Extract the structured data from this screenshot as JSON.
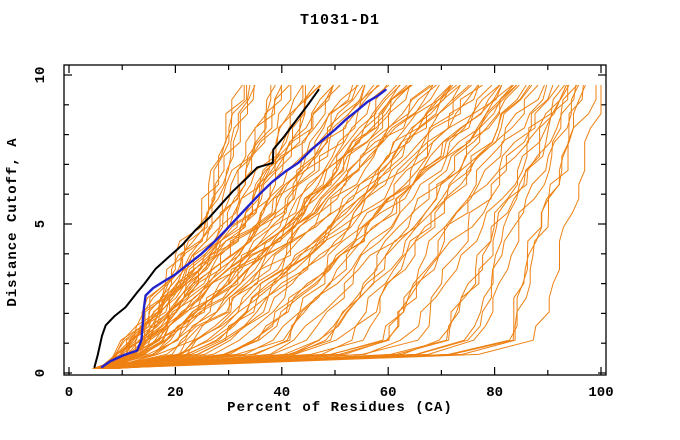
{
  "chart_data": {
    "type": "line",
    "title": "T1031-D1",
    "xlabel": "Percent of Residues (CA)",
    "ylabel": "Distance Cutoff, A",
    "xlim": [
      0,
      100
    ],
    "ylim": [
      0,
      10
    ],
    "x_major_ticks": [
      0,
      20,
      40,
      60,
      80,
      100
    ],
    "x_minor_ticks": [
      10,
      30,
      50,
      70,
      90
    ],
    "y_major_ticks": [
      0,
      5,
      10
    ],
    "y_minor_ticks": [
      1,
      2,
      3,
      4,
      6,
      7,
      8,
      9
    ],
    "grid": false,
    "legend": "none",
    "plot_bg": "#ffffff",
    "frame_color": "#000000",
    "series": [
      {
        "name": "highlighted-model-black",
        "color": "#000000",
        "width": 2,
        "points": [
          [
            4.8,
            0.2
          ],
          [
            5.4,
            0.6
          ],
          [
            6.2,
            1.25
          ],
          [
            6.9,
            1.6
          ],
          [
            8.5,
            1.9
          ],
          [
            10.6,
            2.2
          ],
          [
            12.8,
            2.7
          ],
          [
            14.2,
            3.0
          ],
          [
            16.3,
            3.5
          ],
          [
            18.8,
            3.9
          ],
          [
            21.3,
            4.3
          ],
          [
            23.8,
            4.8
          ],
          [
            26.3,
            5.2
          ],
          [
            28.8,
            5.7
          ],
          [
            30.8,
            6.1
          ],
          [
            33.2,
            6.5
          ],
          [
            35.4,
            6.9
          ],
          [
            38.3,
            7.05
          ],
          [
            38.4,
            7.5
          ],
          [
            40.5,
            7.95
          ],
          [
            42.8,
            8.5
          ],
          [
            44.9,
            9.0
          ],
          [
            46.9,
            9.5
          ]
        ]
      },
      {
        "name": "highlighted-model-blue",
        "color": "#2323cd",
        "width": 2.4,
        "points": [
          [
            6.2,
            0.2
          ],
          [
            7.8,
            0.4
          ],
          [
            10.3,
            0.6
          ],
          [
            12.8,
            0.75
          ],
          [
            13.6,
            1.1
          ],
          [
            13.9,
            1.7
          ],
          [
            14.1,
            2.2
          ],
          [
            14.4,
            2.6
          ],
          [
            15.8,
            2.85
          ],
          [
            17.6,
            3.05
          ],
          [
            19.9,
            3.3
          ],
          [
            22.4,
            3.65
          ],
          [
            24.9,
            4.0
          ],
          [
            27.3,
            4.4
          ],
          [
            29.5,
            4.8
          ],
          [
            31.6,
            5.2
          ],
          [
            33.7,
            5.6
          ],
          [
            35.8,
            6.0
          ],
          [
            38.1,
            6.4
          ],
          [
            40.6,
            6.75
          ],
          [
            43.1,
            7.05
          ],
          [
            45.6,
            7.5
          ],
          [
            47.9,
            7.85
          ],
          [
            49.9,
            8.15
          ],
          [
            52.0,
            8.5
          ],
          [
            54.1,
            8.8
          ],
          [
            56.1,
            9.1
          ],
          [
            58.0,
            9.3
          ],
          [
            59.5,
            9.5
          ]
        ]
      }
    ],
    "ensemble": {
      "name": "model-ensemble-orange",
      "description": "fan of ~90 orange model curves from (≈5-9%, 0.15Å) spreading to (30-100%, 9.65Å); includes flat-bottom curves running to ≈85% below 1Å then rising steeply near the right edge",
      "color": "#ee8112",
      "width": 1,
      "count": 90,
      "seed": 1031,
      "y_start": 0.15,
      "knee_y": 0.7,
      "mid_y": 5,
      "y_end": 9.65,
      "steps": 20,
      "x_bottom_range": [
        4.5,
        9
      ],
      "x_top_range": [
        30,
        100
      ],
      "top_exponent": 0.85,
      "knee_base": 0.1,
      "knee_gain": 0.78,
      "knee_exponent": 2.6,
      "mid_base": 0.42,
      "mid_spread": 0.22,
      "jitter": 1.6
    }
  }
}
